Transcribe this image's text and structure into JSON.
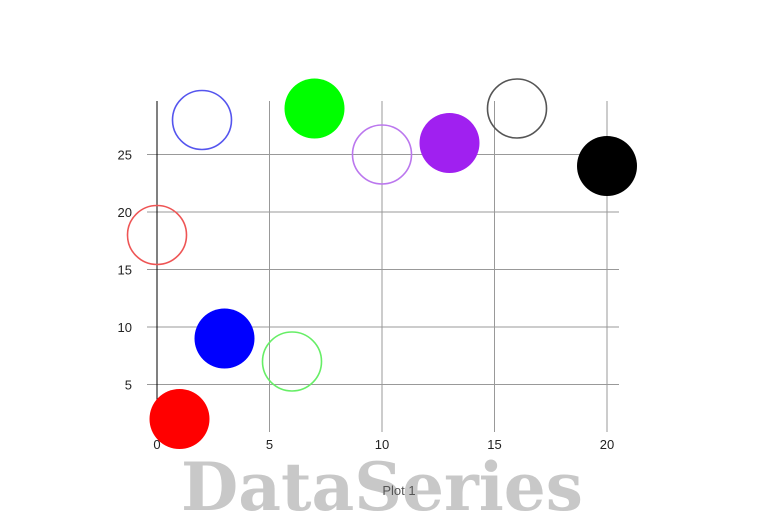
{
  "watermark": "DataSeries",
  "caption": "Plot 1",
  "chart_data": {
    "type": "scatter",
    "xlim": [
      0,
      20
    ],
    "ylim": [
      0,
      29
    ],
    "x_ticks": [
      0,
      5,
      10,
      15,
      20
    ],
    "y_ticks": [
      5,
      10,
      15,
      20,
      25
    ],
    "grid": true,
    "points": [
      {
        "x": 1,
        "y": 2,
        "color": "#ff0000",
        "filled": true
      },
      {
        "x": 2,
        "y": 28,
        "color": "#5555ee",
        "filled": false
      },
      {
        "x": 0,
        "y": 18,
        "color": "#ee5555",
        "filled": false
      },
      {
        "x": 3,
        "y": 9,
        "color": "#0000ff",
        "filled": true
      },
      {
        "x": 6,
        "y": 7,
        "color": "#66ee66",
        "filled": false
      },
      {
        "x": 7,
        "y": 29,
        "color": "#00ff00",
        "filled": true
      },
      {
        "x": 10,
        "y": 25,
        "color": "#bb77ee",
        "filled": false
      },
      {
        "x": 13,
        "y": 26,
        "color": "#a020f0",
        "filled": true
      },
      {
        "x": 16,
        "y": 29,
        "color": "#555555",
        "filled": false
      },
      {
        "x": 20,
        "y": 24,
        "color": "#000000",
        "filled": true
      }
    ]
  }
}
